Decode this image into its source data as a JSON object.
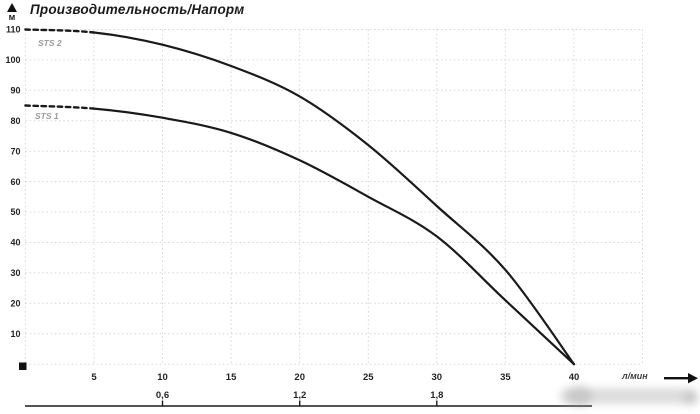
{
  "title": "Производительность/Напорм",
  "y_axis": {
    "unit_label": "м"
  },
  "x_axis": {
    "unit_label": "л/мин"
  },
  "colors": {
    "curve": "#1a1a1a",
    "grid": "#d7d7d7",
    "tick_label": "#242424",
    "series_label": "#9b9b9b",
    "secondary_axis": "#1a1a1a"
  },
  "chart_data": {
    "type": "line",
    "title": "Производительность/Напорм",
    "xlabel": "л/мин",
    "ylabel": "м",
    "xlim": [
      0,
      45
    ],
    "ylim": [
      0,
      110
    ],
    "grid": true,
    "x": [
      0,
      5,
      10,
      15,
      20,
      25,
      30,
      35,
      40
    ],
    "x_ticks": [
      5,
      10,
      15,
      20,
      25,
      30,
      35,
      40
    ],
    "y_ticks": [
      10,
      20,
      30,
      40,
      50,
      60,
      70,
      80,
      90,
      100,
      110
    ],
    "series": [
      {
        "name": "STS 2",
        "values": [
          110,
          109,
          105,
          98,
          88,
          72,
          52,
          31,
          0
        ],
        "dashed_until_index": 1
      },
      {
        "name": "STS 1",
        "values": [
          85,
          84,
          81,
          76,
          67,
          55,
          42,
          21,
          0
        ],
        "dashed_until_index": 1
      }
    ],
    "secondary_x_axis": {
      "tick_labels": [
        "0,6",
        "1,2",
        "1,8"
      ],
      "tick_positions": [
        10,
        20,
        30
      ]
    },
    "origin_marker": "black-square"
  }
}
